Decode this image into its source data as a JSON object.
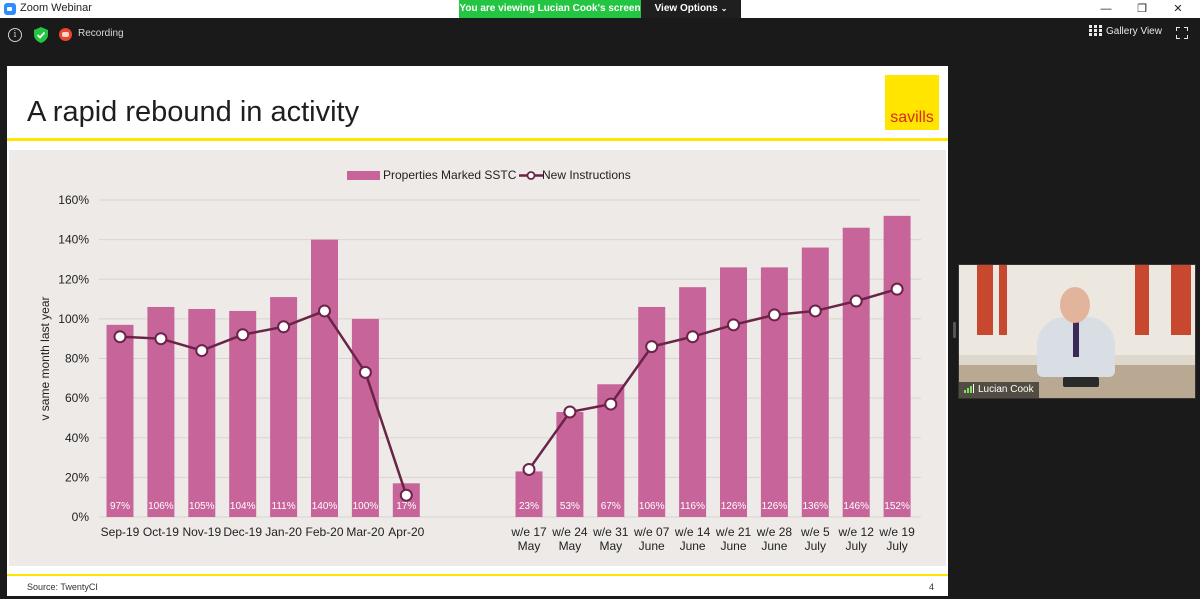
{
  "window": {
    "title": "Zoom Webinar",
    "sharing_banner": "You are viewing Lucian Cook's screen",
    "view_options_label": "View Options",
    "minimize_glyph": "—",
    "restore_glyph": "❐",
    "close_glyph": "✕"
  },
  "toolbar": {
    "info_icon": "info-icon",
    "info_glyph": "i",
    "security_icon": "shield-check-icon",
    "recording_label": "Recording",
    "gallery_view_label": "Gallery View",
    "fullscreen_icon": "fullscreen-icon"
  },
  "slide": {
    "title": "A rapid rebound in activity",
    "logo_text": "savills",
    "source": "Source: TwentyCI",
    "page_number": "4",
    "colors": {
      "brand_yellow": "#ffe500",
      "logo_red": "#d92a1c",
      "bar": "#c7659a",
      "line": "#6b2348",
      "panel": "#edeae7"
    }
  },
  "participant": {
    "name": "Lucian Cook"
  },
  "chart_data": {
    "type": "bar",
    "ylabel": "v same month last year",
    "ylim": [
      0,
      160
    ],
    "yticks": [
      "0%",
      "20%",
      "40%",
      "60%",
      "80%",
      "100%",
      "120%",
      "140%",
      "160%"
    ],
    "grid": true,
    "legend": "top-center",
    "legend_entries": [
      "Properties Marked SSTC",
      "New Instructions"
    ],
    "categories": [
      [
        "Sep-19"
      ],
      [
        "Oct-19"
      ],
      [
        "Nov-19"
      ],
      [
        "Dec-19"
      ],
      [
        "Jan-20"
      ],
      [
        "Feb-20"
      ],
      [
        "Mar-20"
      ],
      [
        "Apr-20"
      ],
      [
        "w/e 17",
        "May"
      ],
      [
        "w/e 24",
        "May"
      ],
      [
        "w/e 31",
        "May"
      ],
      [
        "w/e 07",
        "June"
      ],
      [
        "w/e 14",
        "June"
      ],
      [
        "w/e 21",
        "June"
      ],
      [
        "w/e 28",
        "June"
      ],
      [
        "w/e 5",
        "July"
      ],
      [
        "w/e 12",
        "July"
      ],
      [
        "w/e 19",
        "July"
      ]
    ],
    "series": [
      {
        "name": "Properties Marked SSTC",
        "type": "bar",
        "color": "#c7659a",
        "values": [
          97,
          106,
          105,
          104,
          111,
          140,
          100,
          17,
          23,
          53,
          67,
          106,
          116,
          126,
          126,
          136,
          146,
          152
        ],
        "labels": [
          "97%",
          "106%",
          "105%",
          "104%",
          "111%",
          "140%",
          "100%",
          "17%",
          "23%",
          "53%",
          "67%",
          "106%",
          "116%",
          "126%",
          "126%",
          "136%",
          "146%",
          "152%"
        ]
      },
      {
        "name": "New Instructions",
        "type": "line",
        "color": "#6b2348",
        "values": [
          91,
          90,
          84,
          92,
          96,
          104,
          73,
          11,
          24,
          53,
          57,
          86,
          91,
          97,
          102,
          104,
          109,
          115
        ]
      }
    ]
  }
}
